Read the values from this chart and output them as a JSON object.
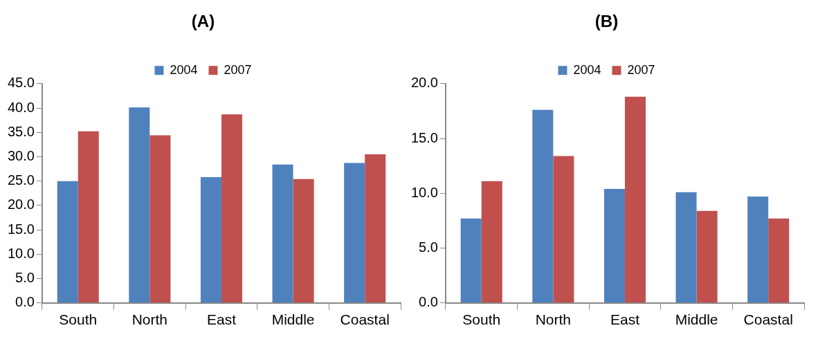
{
  "chart_data": [
    {
      "type": "bar",
      "title": "(A)",
      "categories": [
        "South",
        "North",
        "East",
        "Middle",
        "Coastal"
      ],
      "series": [
        {
          "name": "2004",
          "color": "#4f81bd",
          "values": [
            25.0,
            40.1,
            25.8,
            28.4,
            28.7
          ]
        },
        {
          "name": "2007",
          "color": "#c0504d",
          "values": [
            35.2,
            34.4,
            38.7,
            25.4,
            30.5
          ]
        }
      ],
      "ylim": [
        0,
        45
      ],
      "yticks": [
        {
          "value": 0,
          "label": "0.0"
        },
        {
          "value": 5,
          "label": "5.0"
        },
        {
          "value": 10,
          "label": "10.0"
        },
        {
          "value": 15,
          "label": "15.0"
        },
        {
          "value": 20,
          "label": "20.0"
        },
        {
          "value": 25,
          "label": "25.0"
        },
        {
          "value": 30,
          "label": "30.0"
        },
        {
          "value": 35,
          "label": "35.0"
        },
        {
          "value": 40,
          "label": "40.0"
        },
        {
          "value": 45,
          "label": "45.0"
        }
      ],
      "grid": false,
      "legend": "top"
    },
    {
      "type": "bar",
      "title": "(B)",
      "categories": [
        "South",
        "North",
        "East",
        "Middle",
        "Coastal"
      ],
      "series": [
        {
          "name": "2004",
          "color": "#4f81bd",
          "values": [
            7.7,
            17.6,
            10.4,
            10.1,
            9.7
          ]
        },
        {
          "name": "2007",
          "color": "#c0504d",
          "values": [
            11.1,
            13.4,
            18.8,
            8.4,
            7.7
          ]
        }
      ],
      "ylim": [
        0,
        20
      ],
      "yticks": [
        {
          "value": 0,
          "label": "0.0"
        },
        {
          "value": 5,
          "label": "5.0"
        },
        {
          "value": 10,
          "label": "10.0"
        },
        {
          "value": 15,
          "label": "15.0"
        },
        {
          "value": 20,
          "label": "20.0"
        }
      ],
      "grid": false,
      "legend": "top"
    }
  ]
}
